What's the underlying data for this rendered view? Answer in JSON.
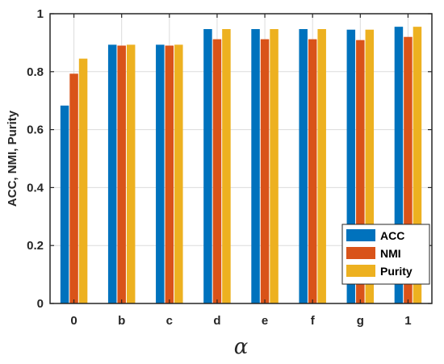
{
  "chart_data": {
    "type": "bar",
    "categories": [
      "0",
      "b",
      "c",
      "d",
      "e",
      "f",
      "g",
      "1"
    ],
    "series": [
      {
        "name": "ACC",
        "color": "#0072BD",
        "values": [
          0.683,
          0.893,
          0.893,
          0.947,
          0.947,
          0.947,
          0.945,
          0.955
        ]
      },
      {
        "name": "NMI",
        "color": "#D95319",
        "values": [
          0.793,
          0.89,
          0.89,
          0.912,
          0.912,
          0.912,
          0.909,
          0.92
        ]
      },
      {
        "name": "Purity",
        "color": "#EDB120",
        "values": [
          0.845,
          0.893,
          0.893,
          0.947,
          0.947,
          0.947,
          0.945,
          0.955
        ]
      }
    ],
    "xlabel": "α",
    "ylabel": "ACC, NMI, Purity",
    "ylim": [
      0,
      1
    ],
    "yticks": [
      "0",
      "0.2",
      "0.4",
      "0.6",
      "0.8",
      "1"
    ],
    "grid": true,
    "legend_position": "bottom-right"
  }
}
